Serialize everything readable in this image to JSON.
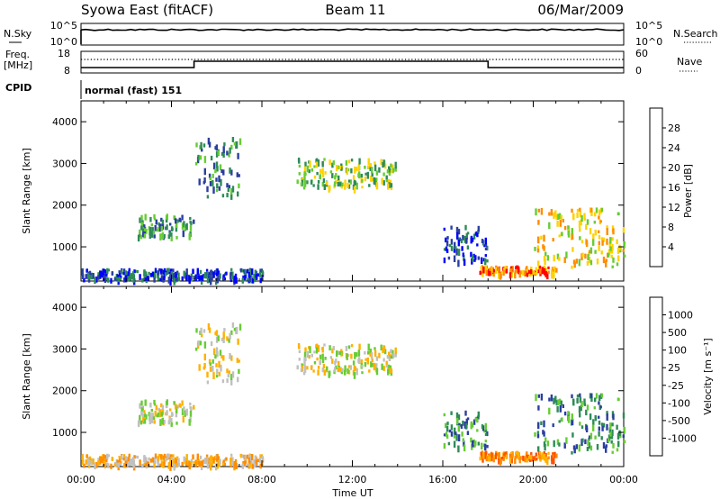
{
  "header": {
    "site": "Syowa East (fitACF)",
    "beam": "Beam 11",
    "date": "06/Mar/2009"
  },
  "status_panels": {
    "nsky_label": "N.Sky",
    "nsky_ticks": [
      "10^5",
      "10^0"
    ],
    "nsearch_label": "N.Search",
    "nsearch_ticks": [
      "10^5",
      "10^0"
    ],
    "freq_label": "Freq.",
    "freq_unit": "[MHz]",
    "freq_ticks": [
      "18",
      "8"
    ],
    "nave_label": "Nave",
    "nave_ticks": [
      "60",
      "0"
    ],
    "cpid_label": "CPID",
    "cpid_value": "normal (fast) 151",
    "freq_steps_hours": [
      [
        0,
        5,
        "low"
      ],
      [
        5,
        18,
        "high"
      ],
      [
        18,
        24,
        "low"
      ]
    ]
  },
  "axes": {
    "ylabel": "Slant Range [km]",
    "xlabel": "Time UT",
    "yticks": [
      1000,
      2000,
      3000,
      4000
    ],
    "ylim": [
      180,
      4500
    ],
    "xlim": [
      0,
      24
    ],
    "xticks": [
      "00:00",
      "04:00",
      "08:00",
      "12:00",
      "16:00",
      "20:00",
      "00:00"
    ]
  },
  "chart_data": [
    {
      "type": "heatmap",
      "parameter": "power",
      "colorbar_label": "Power [dB]",
      "colorbar_ticks": [
        "28",
        "24",
        "20",
        "16",
        "12",
        "8",
        "4"
      ],
      "colorbar_colors": [
        "#0000ff",
        "#2a3fa0",
        "#2e8b57",
        "#66cc33",
        "#ffd200",
        "#ff8c00",
        "#ff0000"
      ],
      "regions": [
        {
          "t0": 5.0,
          "t1": 7.0,
          "r0": 2200,
          "r1": 3600,
          "level": 2
        },
        {
          "t0": 9.5,
          "t1": 13.9,
          "r0": 2400,
          "r1": 3100,
          "level": 3
        },
        {
          "t0": 2.5,
          "t1": 5.0,
          "r0": 1200,
          "r1": 1750,
          "level": 2
        },
        {
          "t0": 16.0,
          "t1": 18.0,
          "r0": 600,
          "r1": 1500,
          "level": 1
        },
        {
          "t0": 17.6,
          "t1": 21.0,
          "r0": 330,
          "r1": 520,
          "level": 5
        },
        {
          "t0": 20.0,
          "t1": 24.0,
          "r0": 500,
          "r1": 1900,
          "level": 4
        },
        {
          "t0": 0.0,
          "t1": 8.0,
          "r0": 200,
          "r1": 450,
          "level": 1
        }
      ]
    },
    {
      "type": "heatmap",
      "parameter": "velocity",
      "colorbar_label": "Velocity [m s⁻¹]",
      "colorbar_ticks": [
        "1000",
        "500",
        "100",
        "25",
        "-25",
        "-100",
        "-500",
        "-1000"
      ],
      "colorbar_colors": [
        "#ff0000",
        "#ff5000",
        "#ff8c00",
        "#ffb000",
        "#c0c0c0",
        "#66cc33",
        "#2e8b57",
        "#2a3fa0",
        "#0000ff"
      ],
      "regions": [
        {
          "t0": 5.0,
          "t1": 7.0,
          "r0": 2200,
          "r1": 3600,
          "level": 4
        },
        {
          "t0": 9.5,
          "t1": 13.9,
          "r0": 2400,
          "r1": 3100,
          "level": 4
        },
        {
          "t0": 2.5,
          "t1": 5.0,
          "r0": 1200,
          "r1": 1750,
          "level": 4
        },
        {
          "t0": 16.0,
          "t1": 18.0,
          "r0": 600,
          "r1": 1500,
          "level": 6
        },
        {
          "t0": 17.6,
          "t1": 21.0,
          "r0": 330,
          "r1": 520,
          "level": 2
        },
        {
          "t0": 20.0,
          "t1": 24.0,
          "r0": 500,
          "r1": 1900,
          "level": 6
        },
        {
          "t0": 0.0,
          "t1": 8.0,
          "r0": 200,
          "r1": 450,
          "level": 3
        }
      ]
    }
  ]
}
